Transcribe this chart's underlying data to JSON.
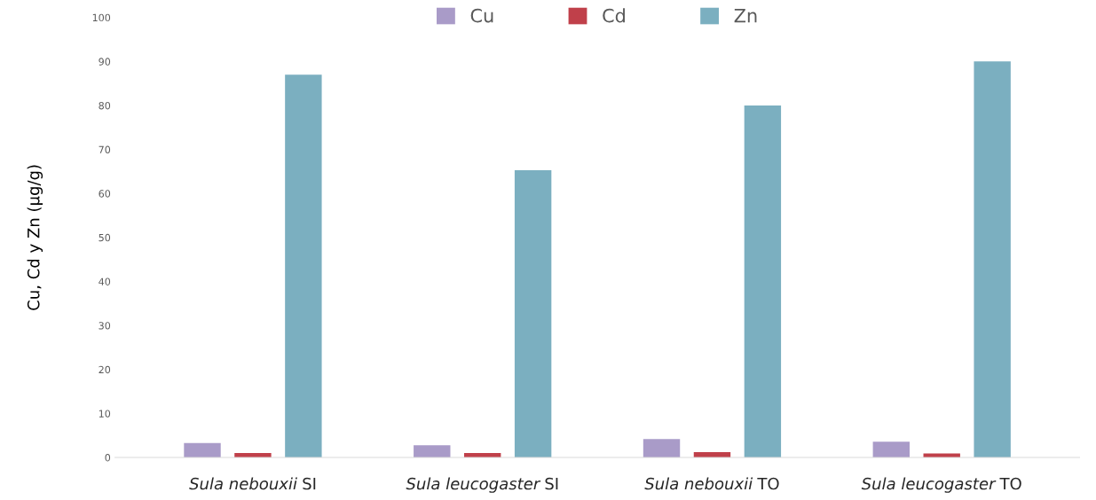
{
  "chart_data": {
    "type": "bar",
    "ylabel": "Cu, Cd y Zn (µg/g)",
    "categories": [
      "Sula nebouxii SI",
      "Sula leucogaster SI",
      "Sula nebouxii TO",
      "Sula leucogaster TO"
    ],
    "series": [
      {
        "name": "Cu",
        "color": "#a99bc8",
        "values": [
          3.3,
          2.8,
          4.2,
          3.6
        ]
      },
      {
        "name": "Cd",
        "color": "#c0404a",
        "values": [
          1.0,
          1.0,
          1.2,
          0.9
        ]
      },
      {
        "name": "Zn",
        "color": "#7bafc0",
        "values": [
          87,
          65.3,
          80,
          90
        ]
      }
    ],
    "ylim": [
      0,
      100
    ],
    "yticks": [
      0,
      10,
      20,
      30,
      40,
      50,
      60,
      70,
      80,
      90,
      100
    ],
    "grid": false,
    "legend": "top"
  }
}
